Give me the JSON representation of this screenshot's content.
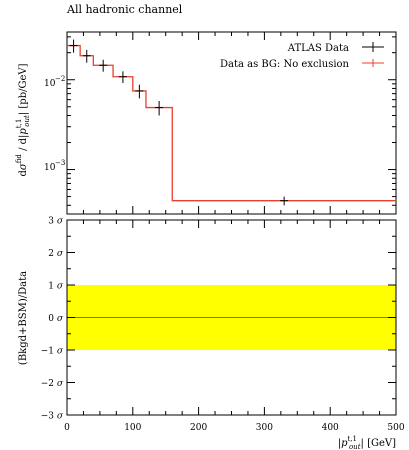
{
  "chart_data": [
    {
      "type": "line",
      "title": "All hadronic channel",
      "ylabel": "dσ^fid / d|p_out^t,1| [pb/GeV]",
      "xlabel": "",
      "y_scale": "log",
      "xlim": [
        0,
        500
      ],
      "ylim": [
        0.00032,
        0.034
      ],
      "ytick_labels": [
        "10^-2",
        "10^-3"
      ],
      "legend": {
        "placement": "top-right",
        "entries": [
          "ATLAS Data",
          "Data as BG: No exclusion"
        ]
      },
      "colors": {
        "data": "#000000",
        "bg": "#e8412a"
      },
      "bin_edges": [
        0,
        20,
        40,
        70,
        100,
        120,
        160,
        500
      ],
      "series": [
        {
          "name": "ATLAS Data",
          "style": "points-with-error-bars",
          "x": [
            10,
            30,
            55,
            85,
            110,
            140,
            330
          ],
          "y": [
            0.024,
            0.0185,
            0.0145,
            0.0108,
            0.0075,
            0.0049,
            0.00045
          ],
          "yerr": [
            0.004,
            0.003,
            0.0022,
            0.0016,
            0.0013,
            0.0009,
            5e-05
          ]
        },
        {
          "name": "Data as BG: No exclusion",
          "style": "step",
          "values": [
            0.024,
            0.0185,
            0.0145,
            0.0108,
            0.0075,
            0.0049,
            0.00045
          ]
        }
      ]
    },
    {
      "type": "area",
      "ylabel": "(Bkgd+BSM)/Data",
      "xlabel": "|p_out^t,1| [GeV]",
      "xlim": [
        0,
        500
      ],
      "ylim": [
        -3,
        3
      ],
      "x_ticks": [
        0,
        100,
        200,
        300,
        400,
        500
      ],
      "y_ticks": [
        3,
        2,
        1,
        0,
        -1,
        -2,
        -3
      ],
      "y_tick_unit": "σ",
      "band": {
        "lower": -1,
        "upper": 1,
        "color": "#ffff00"
      },
      "series": [
        {
          "name": "",
          "x": [
            0,
            500
          ],
          "values": [
            0,
            0
          ],
          "color": "#e8412a"
        }
      ]
    }
  ]
}
